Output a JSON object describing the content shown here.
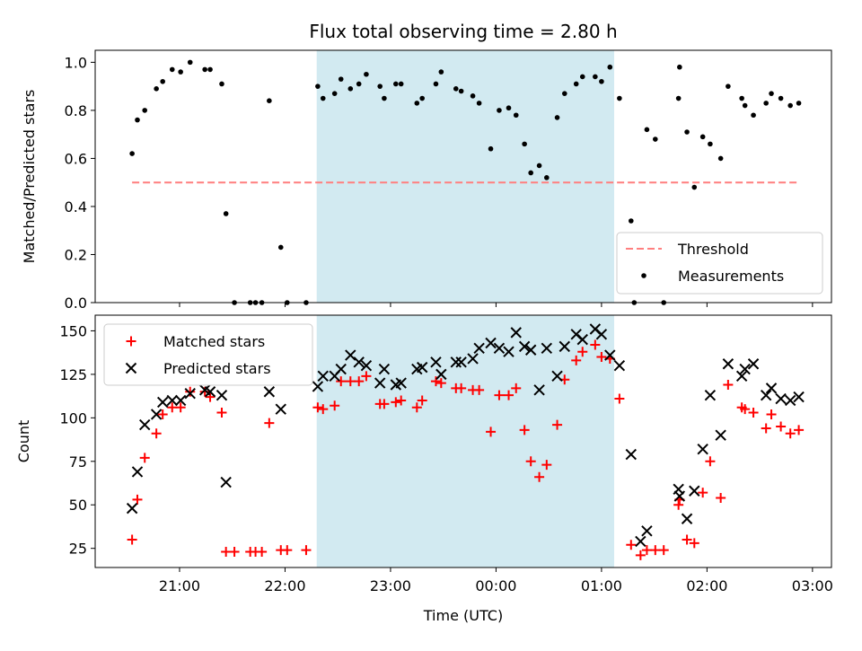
{
  "chart_data": {
    "title": "Flux total observing time = 2.80 h",
    "xlabel": "Time (UTC)",
    "x_tick_labels": [
      "21:00",
      "22:00",
      "23:00",
      "00:00",
      "01:00",
      "02:00",
      "03:00"
    ],
    "x_tick_hours": [
      21,
      22,
      23,
      24,
      25,
      26,
      27
    ],
    "xlim_hours": [
      20.2,
      27.18
    ],
    "highlight_span_hours": [
      22.3,
      25.12
    ],
    "highlight_color": "#add8e6",
    "panels": [
      {
        "type": "scatter",
        "ylabel": "Matched/Predicted stars",
        "ylim": [
          0,
          1.05
        ],
        "y_ticks": [
          0.0,
          0.2,
          0.4,
          0.6,
          0.8,
          1.0
        ],
        "y_tick_labels": [
          "0.0",
          "0.2",
          "0.4",
          "0.6",
          "0.8",
          "1.0"
        ],
        "legend": [
          "Threshold",
          "Measurements"
        ],
        "legend_position": "lower-right",
        "threshold": {
          "name": "Threshold",
          "value": 0.5,
          "x_range": [
            20.55,
            26.87
          ],
          "color": "#ff7f7f"
        },
        "measurements": {
          "name": "Measurements",
          "color": "#000000",
          "points": [
            [
              20.55,
              0.62
            ],
            [
              20.6,
              0.76
            ],
            [
              20.67,
              0.8
            ],
            [
              20.78,
              0.89
            ],
            [
              20.84,
              0.92
            ],
            [
              20.93,
              0.97
            ],
            [
              21.01,
              0.96
            ],
            [
              21.1,
              1.0
            ],
            [
              21.24,
              0.97
            ],
            [
              21.29,
              0.97
            ],
            [
              21.4,
              0.91
            ],
            [
              21.44,
              0.37
            ],
            [
              21.52,
              0.0
            ],
            [
              21.67,
              0.0
            ],
            [
              21.72,
              0.0
            ],
            [
              21.78,
              0.0
            ],
            [
              21.85,
              0.84
            ],
            [
              21.96,
              0.23
            ],
            [
              22.02,
              0.0
            ],
            [
              22.2,
              0.0
            ],
            [
              22.31,
              0.9
            ],
            [
              22.36,
              0.85
            ],
            [
              22.47,
              0.87
            ],
            [
              22.53,
              0.93
            ],
            [
              22.62,
              0.89
            ],
            [
              22.7,
              0.91
            ],
            [
              22.77,
              0.95
            ],
            [
              22.9,
              0.9
            ],
            [
              22.94,
              0.85
            ],
            [
              23.05,
              0.91
            ],
            [
              23.1,
              0.91
            ],
            [
              23.25,
              0.83
            ],
            [
              23.3,
              0.85
            ],
            [
              23.43,
              0.91
            ],
            [
              23.48,
              0.96
            ],
            [
              23.62,
              0.89
            ],
            [
              23.67,
              0.88
            ],
            [
              23.78,
              0.86
            ],
            [
              23.84,
              0.83
            ],
            [
              23.95,
              0.64
            ],
            [
              24.03,
              0.8
            ],
            [
              24.12,
              0.81
            ],
            [
              24.19,
              0.78
            ],
            [
              24.27,
              0.66
            ],
            [
              24.33,
              0.54
            ],
            [
              24.41,
              0.57
            ],
            [
              24.48,
              0.52
            ],
            [
              24.58,
              0.77
            ],
            [
              24.65,
              0.87
            ],
            [
              24.76,
              0.91
            ],
            [
              24.82,
              0.94
            ],
            [
              24.94,
              0.94
            ],
            [
              25.0,
              0.92
            ],
            [
              25.08,
              0.98
            ],
            [
              25.17,
              0.85
            ],
            [
              25.28,
              0.34
            ],
            [
              25.31,
              0.0
            ],
            [
              25.43,
              0.72
            ],
            [
              25.51,
              0.68
            ],
            [
              25.59,
              0.0
            ],
            [
              25.73,
              0.85
            ],
            [
              25.74,
              0.98
            ],
            [
              25.81,
              0.71
            ],
            [
              25.88,
              0.48
            ],
            [
              25.96,
              0.69
            ],
            [
              26.03,
              0.66
            ],
            [
              26.13,
              0.6
            ],
            [
              26.2,
              0.9
            ],
            [
              26.33,
              0.85
            ],
            [
              26.36,
              0.82
            ],
            [
              26.44,
              0.78
            ],
            [
              26.56,
              0.83
            ],
            [
              26.61,
              0.87
            ],
            [
              26.7,
              0.85
            ],
            [
              26.79,
              0.82
            ],
            [
              26.87,
              0.83
            ]
          ]
        }
      },
      {
        "type": "scatter",
        "ylabel": "Count",
        "ylim": [
          14,
          159
        ],
        "y_ticks": [
          25,
          50,
          75,
          100,
          125,
          150
        ],
        "y_tick_labels": [
          "25",
          "50",
          "75",
          "100",
          "125",
          "150"
        ],
        "legend": [
          "Matched stars",
          "Predicted stars"
        ],
        "legend_position": "upper-left",
        "series": [
          {
            "name": "Matched stars",
            "marker": "plus",
            "color": "#ff0000",
            "points": [
              [
                20.55,
                30
              ],
              [
                20.6,
                53
              ],
              [
                20.67,
                77
              ],
              [
                20.78,
                91
              ],
              [
                20.84,
                102
              ],
              [
                20.93,
                106
              ],
              [
                21.01,
                106
              ],
              [
                21.1,
                115
              ],
              [
                21.24,
                115
              ],
              [
                21.29,
                112
              ],
              [
                21.4,
                103
              ],
              [
                21.44,
                23
              ],
              [
                21.52,
                23
              ],
              [
                21.67,
                23
              ],
              [
                21.72,
                23
              ],
              [
                21.78,
                23
              ],
              [
                21.85,
                97
              ],
              [
                21.96,
                24
              ],
              [
                22.02,
                24
              ],
              [
                22.2,
                24
              ],
              [
                22.31,
                106
              ],
              [
                22.36,
                105
              ],
              [
                22.47,
                107
              ],
              [
                22.53,
                121
              ],
              [
                22.62,
                121
              ],
              [
                22.7,
                121
              ],
              [
                22.77,
                124
              ],
              [
                22.9,
                108
              ],
              [
                22.94,
                108
              ],
              [
                23.05,
                109
              ],
              [
                23.1,
                110
              ],
              [
                23.25,
                106
              ],
              [
                23.3,
                110
              ],
              [
                23.43,
                121
              ],
              [
                23.48,
                120
              ],
              [
                23.62,
                117
              ],
              [
                23.67,
                117
              ],
              [
                23.78,
                116
              ],
              [
                23.84,
                116
              ],
              [
                23.95,
                92
              ],
              [
                24.03,
                113
              ],
              [
                24.12,
                113
              ],
              [
                24.19,
                117
              ],
              [
                24.27,
                93
              ],
              [
                24.33,
                75
              ],
              [
                24.41,
                66
              ],
              [
                24.48,
                73
              ],
              [
                24.58,
                96
              ],
              [
                24.65,
                122
              ],
              [
                24.76,
                133
              ],
              [
                24.82,
                138
              ],
              [
                24.94,
                142
              ],
              [
                25.0,
                135
              ],
              [
                25.08,
                134
              ],
              [
                25.17,
                111
              ],
              [
                25.28,
                27
              ],
              [
                25.37,
                21
              ],
              [
                25.43,
                24
              ],
              [
                25.51,
                24
              ],
              [
                25.59,
                24
              ],
              [
                25.73,
                50
              ],
              [
                25.74,
                53
              ],
              [
                25.81,
                30
              ],
              [
                25.88,
                28
              ],
              [
                25.96,
                57
              ],
              [
                26.03,
                75
              ],
              [
                26.13,
                54
              ],
              [
                26.2,
                119
              ],
              [
                26.33,
                106
              ],
              [
                26.36,
                105
              ],
              [
                26.44,
                103
              ],
              [
                26.56,
                94
              ],
              [
                26.61,
                102
              ],
              [
                26.7,
                95
              ],
              [
                26.79,
                91
              ],
              [
                26.87,
                93
              ]
            ]
          },
          {
            "name": "Predicted stars",
            "marker": "x",
            "color": "#000000",
            "points": [
              [
                20.55,
                48
              ],
              [
                20.6,
                69
              ],
              [
                20.67,
                96
              ],
              [
                20.78,
                102
              ],
              [
                20.84,
                109
              ],
              [
                20.93,
                110
              ],
              [
                21.01,
                110
              ],
              [
                21.1,
                114
              ],
              [
                21.24,
                116
              ],
              [
                21.29,
                115
              ],
              [
                21.4,
                113
              ],
              [
                21.44,
                63
              ],
              [
                21.85,
                115
              ],
              [
                21.96,
                105
              ],
              [
                22.31,
                118
              ],
              [
                22.36,
                124
              ],
              [
                22.47,
                124
              ],
              [
                22.53,
                128
              ],
              [
                22.62,
                136
              ],
              [
                22.7,
                132
              ],
              [
                22.77,
                130
              ],
              [
                22.9,
                120
              ],
              [
                22.94,
                128
              ],
              [
                23.05,
                119
              ],
              [
                23.1,
                120
              ],
              [
                23.25,
                128
              ],
              [
                23.3,
                129
              ],
              [
                23.43,
                132
              ],
              [
                23.48,
                125
              ],
              [
                23.62,
                132
              ],
              [
                23.67,
                132
              ],
              [
                23.78,
                134
              ],
              [
                23.84,
                140
              ],
              [
                23.95,
                143
              ],
              [
                24.03,
                140
              ],
              [
                24.12,
                138
              ],
              [
                24.19,
                149
              ],
              [
                24.27,
                141
              ],
              [
                24.33,
                139
              ],
              [
                24.41,
                116
              ],
              [
                24.48,
                140
              ],
              [
                24.58,
                124
              ],
              [
                24.65,
                141
              ],
              [
                24.76,
                148
              ],
              [
                24.82,
                145
              ],
              [
                24.94,
                151
              ],
              [
                25.0,
                148
              ],
              [
                25.08,
                136
              ],
              [
                25.17,
                130
              ],
              [
                25.28,
                79
              ],
              [
                25.37,
                29
              ],
              [
                25.43,
                35
              ],
              [
                25.73,
                59
              ],
              [
                25.74,
                55
              ],
              [
                25.81,
                42
              ],
              [
                25.88,
                58
              ],
              [
                25.96,
                82
              ],
              [
                26.03,
                113
              ],
              [
                26.13,
                90
              ],
              [
                26.2,
                131
              ],
              [
                26.33,
                124
              ],
              [
                26.36,
                128
              ],
              [
                26.44,
                131
              ],
              [
                26.56,
                113
              ],
              [
                26.61,
                117
              ],
              [
                26.7,
                111
              ],
              [
                26.79,
                110
              ],
              [
                26.87,
                112
              ]
            ]
          }
        ]
      }
    ]
  }
}
